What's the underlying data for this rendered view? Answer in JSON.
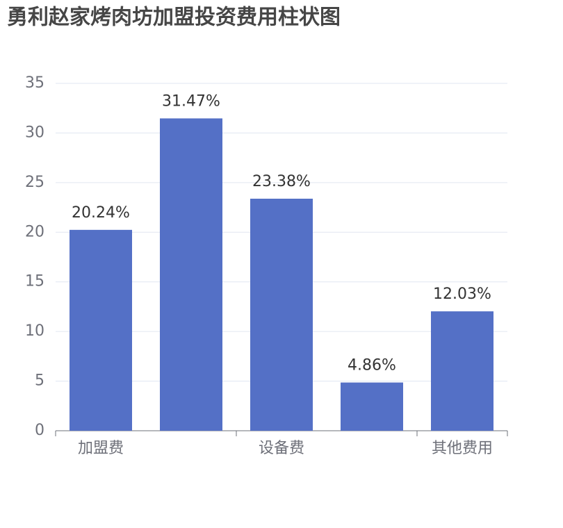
{
  "chart_data": {
    "type": "bar",
    "title": "勇利赵家烤肉坊加盟投资费用柱状图",
    "categories": [
      "加盟费",
      null,
      "设备费",
      null,
      "其他费用"
    ],
    "values": [
      20.24,
      31.47,
      23.38,
      4.86,
      12.03
    ],
    "value_labels": [
      "20.24%",
      "31.47%",
      "23.38%",
      "4.86%",
      "12.03%"
    ],
    "color": "#5470c6",
    "ylim": [
      0,
      35
    ],
    "yticks": [
      0,
      5,
      10,
      15,
      20,
      25,
      30,
      35
    ],
    "grid": true
  }
}
